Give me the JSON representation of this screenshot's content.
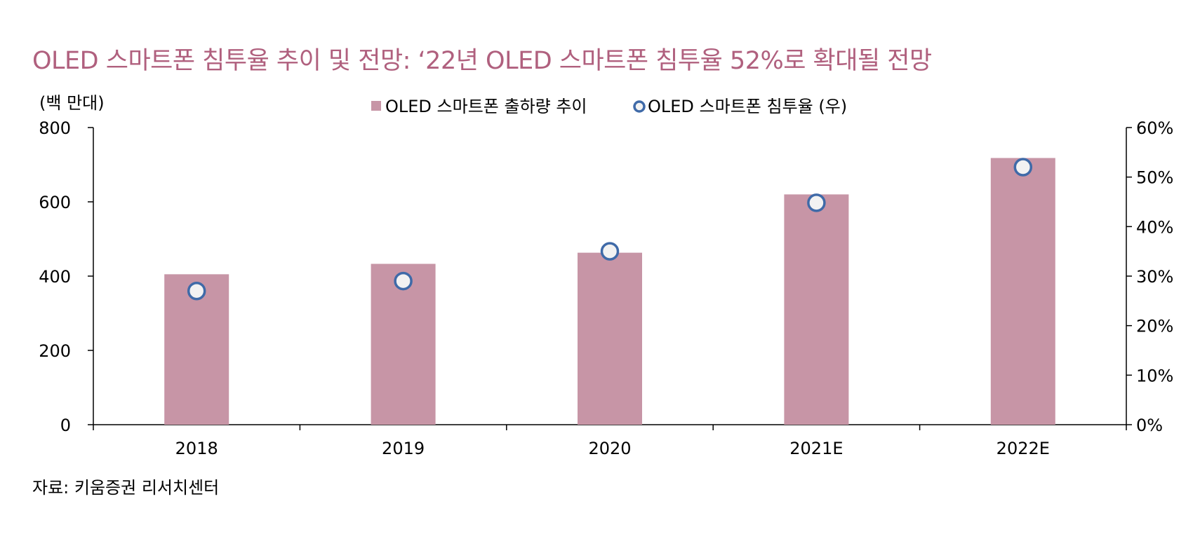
{
  "title": "OLED 스마트폰 침투율 추이 및 전망: ‘22년 OLED 스마트폰 침투율 52%로 확대될 전망",
  "source": "자료: 키움증권 리서치센터",
  "colors": {
    "title": "#b0607e",
    "bar": "#c795a6",
    "marker_edge": "#3f6aa8",
    "marker_fill": "#f2f2f2"
  },
  "chart_data": {
    "type": "bar",
    "categories": [
      "2018",
      "2019",
      "2020",
      "2021E",
      "2022E"
    ],
    "series": [
      {
        "name": "OLED 스마트폰 출하량 추이",
        "type": "bar",
        "axis": "left",
        "values": [
          405,
          433,
          463,
          620,
          718
        ]
      },
      {
        "name": "OLED 스마트폰 침투율 (우)",
        "type": "scatter",
        "axis": "right",
        "values": [
          27,
          29,
          35,
          44.8,
          52
        ]
      }
    ],
    "left_axis": {
      "label": "(백 만대)",
      "ylim": [
        0,
        800
      ],
      "ticks": [
        "0",
        "200",
        "400",
        "600",
        "800"
      ]
    },
    "right_axis": {
      "ylim": [
        0,
        60
      ],
      "ticks": [
        "0%",
        "10%",
        "20%",
        "30%",
        "40%",
        "50%",
        "60%"
      ]
    },
    "grid": false,
    "legend": "top-center"
  }
}
